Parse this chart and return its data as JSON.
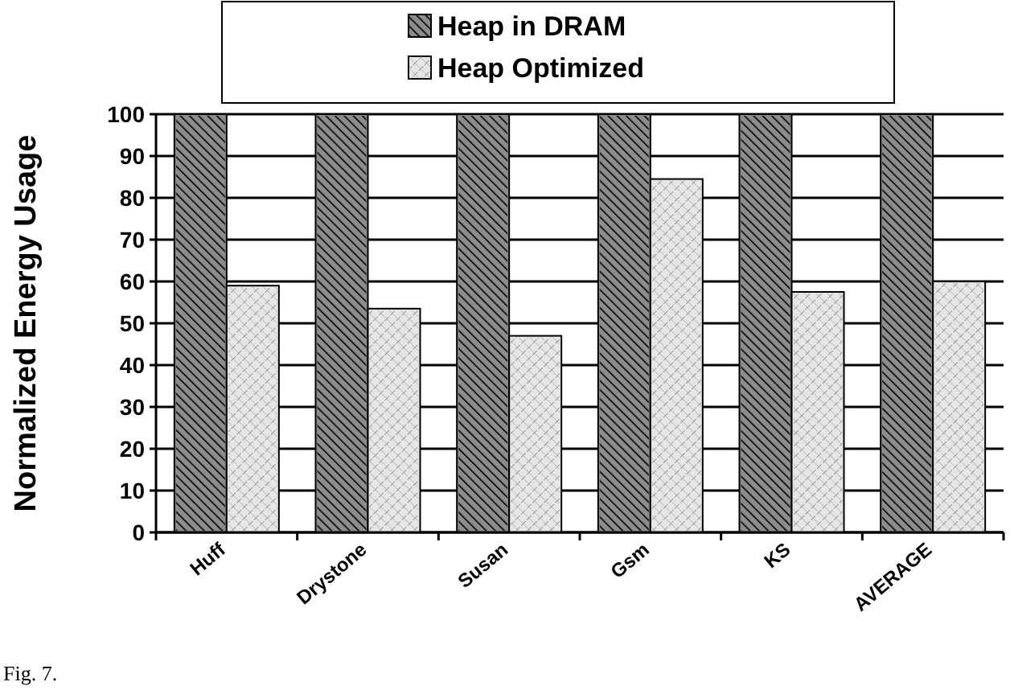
{
  "chart_data": {
    "type": "bar",
    "ylabel": "Normalized Energy Usage",
    "categories": [
      "Huff",
      "Drystone",
      "Susan",
      "Gsm",
      "KS",
      "AVERAGE"
    ],
    "series": [
      {
        "name": "Heap in DRAM",
        "color": "#8c8c8c",
        "values": [
          100,
          100,
          100,
          100,
          100,
          100
        ]
      },
      {
        "name": "Heap Optimized",
        "color": "#e6e6e6",
        "values": [
          59,
          53.5,
          47,
          84.5,
          57.5,
          60
        ]
      }
    ],
    "ylim": [
      0,
      100
    ],
    "yticks": [
      0,
      10,
      20,
      30,
      40,
      50,
      60,
      70,
      80,
      90,
      100
    ],
    "grid": "y",
    "legend": "top",
    "annotations": [
      "Fig. 7."
    ]
  }
}
